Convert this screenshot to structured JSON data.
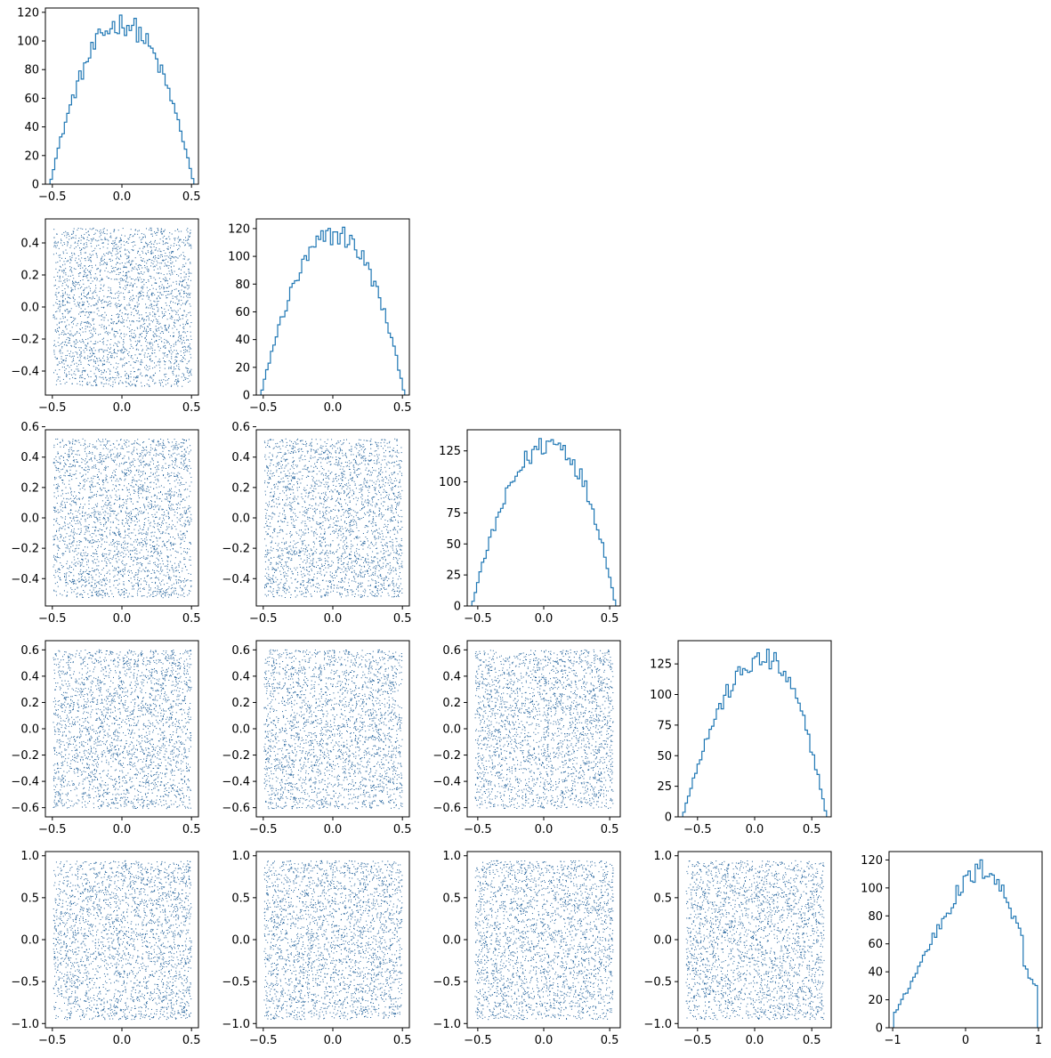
{
  "chart_data": {
    "type": "corner",
    "description_of_layout": "lower-triangular matrix: histograms on diagonal, scatter plots below",
    "series_color": "#1f77b4",
    "variables": [
      {
        "range": [
          -0.55,
          0.55
        ],
        "ticks": [
          -0.5,
          0.0,
          0.5
        ],
        "tick_labels": [
          "−0.5",
          "0.0",
          "0.5"
        ],
        "hist": {
          "yticks": [
            0,
            20,
            40,
            60,
            80,
            100,
            120
          ],
          "ylim": [
            0,
            123
          ],
          "peak": 118,
          "shape": "dome",
          "skew": 0.0
        }
      },
      {
        "range": [
          -0.55,
          0.55
        ],
        "ticks": [
          -0.5,
          0.0,
          0.5
        ],
        "tick_labels": [
          "−0.5",
          "0.0",
          "0.5"
        ],
        "scatter_yticks": [
          -0.4,
          -0.2,
          0.0,
          0.2,
          0.4
        ],
        "scatter_ytick_labels": [
          "−0.4",
          "−0.2",
          "0.0",
          "0.2",
          "0.4"
        ],
        "hist": {
          "yticks": [
            0,
            20,
            40,
            60,
            80,
            100,
            120
          ],
          "ylim": [
            0,
            127
          ],
          "peak": 121,
          "shape": "dome",
          "skew": 0.05
        }
      },
      {
        "range": [
          -0.58,
          0.58
        ],
        "ticks": [
          -0.5,
          0.0,
          0.5
        ],
        "tick_labels": [
          "−0.5",
          "0.0",
          "0.5"
        ],
        "scatter_yticks": [
          -0.4,
          -0.2,
          0.0,
          0.2,
          0.4,
          0.6
        ],
        "scatter_ytick_labels": [
          "−0.4",
          "−0.2",
          "0.0",
          "0.2",
          "0.4",
          "0.6"
        ],
        "hist": {
          "yticks": [
            0,
            25,
            50,
            75,
            100,
            125
          ],
          "ylim": [
            0,
            142
          ],
          "peak": 135,
          "shape": "dome",
          "skew": 0.12
        }
      },
      {
        "range": [
          -0.67,
          0.67
        ],
        "ticks": [
          -0.5,
          0.0,
          0.5
        ],
        "tick_labels": [
          "−0.5",
          "0.0",
          "0.5"
        ],
        "scatter_yticks": [
          -0.6,
          -0.4,
          -0.2,
          0.0,
          0.2,
          0.4,
          0.6
        ],
        "scatter_ytick_labels": [
          "−0.6",
          "−0.4",
          "−0.2",
          "0.0",
          "0.2",
          "0.4",
          "0.6"
        ],
        "hist": {
          "yticks": [
            0,
            25,
            50,
            75,
            100,
            125
          ],
          "ylim": [
            0,
            144
          ],
          "peak": 137,
          "shape": "dome",
          "skew": 0.15
        }
      },
      {
        "range": [
          -1.05,
          1.05
        ],
        "ticks": [
          -1,
          0,
          1
        ],
        "tick_labels": [
          "−1",
          "0",
          "1"
        ],
        "scatter_yticks": [
          -1.0,
          -0.5,
          0.0,
          0.5,
          1.0
        ],
        "scatter_ytick_labels": [
          "−1.0",
          "−0.5",
          "0.0",
          "0.5",
          "1.0"
        ],
        "hist": {
          "yticks": [
            0,
            20,
            40,
            60,
            80,
            100,
            120
          ],
          "ylim": [
            0,
            126
          ],
          "peak": 120,
          "shape": "ramp",
          "skew": 0.3
        }
      }
    ]
  }
}
